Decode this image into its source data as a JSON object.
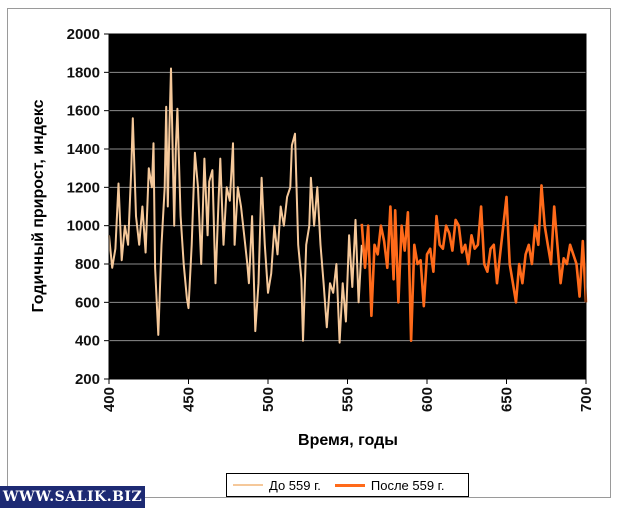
{
  "chart_data": {
    "type": "line",
    "xlabel": "Время, годы",
    "ylabel": "Годичный прирост,  индекс",
    "xlim": [
      400,
      700
    ],
    "ylim": [
      200,
      2000
    ],
    "x_ticks": [
      "400",
      "450",
      "500",
      "550",
      "600",
      "650",
      "700"
    ],
    "y_ticks": [
      "200",
      "400",
      "600",
      "800",
      "1000",
      "1200",
      "1400",
      "1600",
      "1800",
      "2000"
    ],
    "background": "#000000",
    "grid": true,
    "legend_position": "bottom",
    "series": [
      {
        "name": "До 559 г.",
        "color": "#f5c89a",
        "points": [
          [
            400,
            950
          ],
          [
            402,
            780
          ],
          [
            404,
            880
          ],
          [
            406,
            1220
          ],
          [
            408,
            820
          ],
          [
            410,
            1000
          ],
          [
            412,
            900
          ],
          [
            414,
            1300
          ],
          [
            415,
            1560
          ],
          [
            417,
            1050
          ],
          [
            419,
            900
          ],
          [
            421,
            1100
          ],
          [
            423,
            860
          ],
          [
            425,
            1300
          ],
          [
            427,
            1200
          ],
          [
            428,
            1430
          ],
          [
            429,
            780
          ],
          [
            431,
            430
          ],
          [
            433,
            900
          ],
          [
            435,
            1200
          ],
          [
            436,
            1620
          ],
          [
            437,
            1100
          ],
          [
            438,
            1500
          ],
          [
            439,
            1820
          ],
          [
            441,
            1000
          ],
          [
            442,
            1400
          ],
          [
            443,
            1610
          ],
          [
            445,
            1050
          ],
          [
            447,
            800
          ],
          [
            449,
            620
          ],
          [
            450,
            570
          ],
          [
            452,
            900
          ],
          [
            454,
            1380
          ],
          [
            456,
            1200
          ],
          [
            458,
            800
          ],
          [
            460,
            1350
          ],
          [
            462,
            950
          ],
          [
            463,
            1230
          ],
          [
            465,
            1290
          ],
          [
            467,
            700
          ],
          [
            469,
            1150
          ],
          [
            470,
            1350
          ],
          [
            472,
            900
          ],
          [
            474,
            1200
          ],
          [
            476,
            1130
          ],
          [
            478,
            1430
          ],
          [
            479,
            900
          ],
          [
            481,
            1200
          ],
          [
            483,
            1100
          ],
          [
            485,
            950
          ],
          [
            487,
            800
          ],
          [
            488,
            700
          ],
          [
            490,
            1050
          ],
          [
            492,
            450
          ],
          [
            494,
            700
          ],
          [
            496,
            1250
          ],
          [
            498,
            900
          ],
          [
            500,
            650
          ],
          [
            502,
            750
          ],
          [
            504,
            1000
          ],
          [
            506,
            850
          ],
          [
            508,
            1100
          ],
          [
            510,
            1000
          ],
          [
            512,
            1150
          ],
          [
            514,
            1200
          ],
          [
            515,
            1420
          ],
          [
            517,
            1480
          ],
          [
            519,
            900
          ],
          [
            521,
            720
          ],
          [
            522,
            400
          ],
          [
            524,
            900
          ],
          [
            526,
            1000
          ],
          [
            527,
            1250
          ],
          [
            529,
            1000
          ],
          [
            531,
            1200
          ],
          [
            533,
            900
          ],
          [
            535,
            700
          ],
          [
            537,
            470
          ],
          [
            539,
            700
          ],
          [
            541,
            650
          ],
          [
            543,
            800
          ],
          [
            545,
            390
          ],
          [
            547,
            700
          ],
          [
            549,
            500
          ],
          [
            551,
            950
          ],
          [
            553,
            680
          ],
          [
            555,
            1030
          ],
          [
            557,
            600
          ],
          [
            559,
            900
          ]
        ]
      },
      {
        "name": "После 559 г.",
        "color": "#ff6a1a",
        "points": [
          [
            559,
            1010
          ],
          [
            561,
            780
          ],
          [
            563,
            1000
          ],
          [
            565,
            530
          ],
          [
            567,
            900
          ],
          [
            569,
            850
          ],
          [
            571,
            1000
          ],
          [
            573,
            920
          ],
          [
            575,
            780
          ],
          [
            577,
            1100
          ],
          [
            579,
            720
          ],
          [
            580,
            1080
          ],
          [
            582,
            600
          ],
          [
            584,
            1000
          ],
          [
            586,
            870
          ],
          [
            588,
            1070
          ],
          [
            590,
            400
          ],
          [
            592,
            900
          ],
          [
            594,
            800
          ],
          [
            596,
            820
          ],
          [
            598,
            580
          ],
          [
            600,
            850
          ],
          [
            602,
            880
          ],
          [
            604,
            760
          ],
          [
            606,
            1050
          ],
          [
            608,
            900
          ],
          [
            610,
            880
          ],
          [
            612,
            1000
          ],
          [
            614,
            960
          ],
          [
            616,
            870
          ],
          [
            618,
            1030
          ],
          [
            620,
            1000
          ],
          [
            622,
            860
          ],
          [
            624,
            900
          ],
          [
            626,
            800
          ],
          [
            628,
            950
          ],
          [
            630,
            880
          ],
          [
            632,
            900
          ],
          [
            634,
            1100
          ],
          [
            636,
            800
          ],
          [
            638,
            760
          ],
          [
            640,
            880
          ],
          [
            642,
            900
          ],
          [
            644,
            700
          ],
          [
            646,
            850
          ],
          [
            648,
            1000
          ],
          [
            650,
            1150
          ],
          [
            652,
            800
          ],
          [
            654,
            700
          ],
          [
            656,
            600
          ],
          [
            658,
            800
          ],
          [
            660,
            700
          ],
          [
            662,
            850
          ],
          [
            664,
            900
          ],
          [
            666,
            800
          ],
          [
            668,
            1000
          ],
          [
            670,
            900
          ],
          [
            672,
            1210
          ],
          [
            674,
            1000
          ],
          [
            676,
            900
          ],
          [
            678,
            800
          ],
          [
            680,
            1100
          ],
          [
            682,
            900
          ],
          [
            684,
            700
          ],
          [
            686,
            830
          ],
          [
            688,
            800
          ],
          [
            690,
            900
          ],
          [
            692,
            850
          ],
          [
            694,
            800
          ],
          [
            696,
            630
          ],
          [
            698,
            920
          ],
          [
            700,
            600
          ]
        ]
      }
    ]
  },
  "watermark": "WWW.SALIK.BIZ"
}
